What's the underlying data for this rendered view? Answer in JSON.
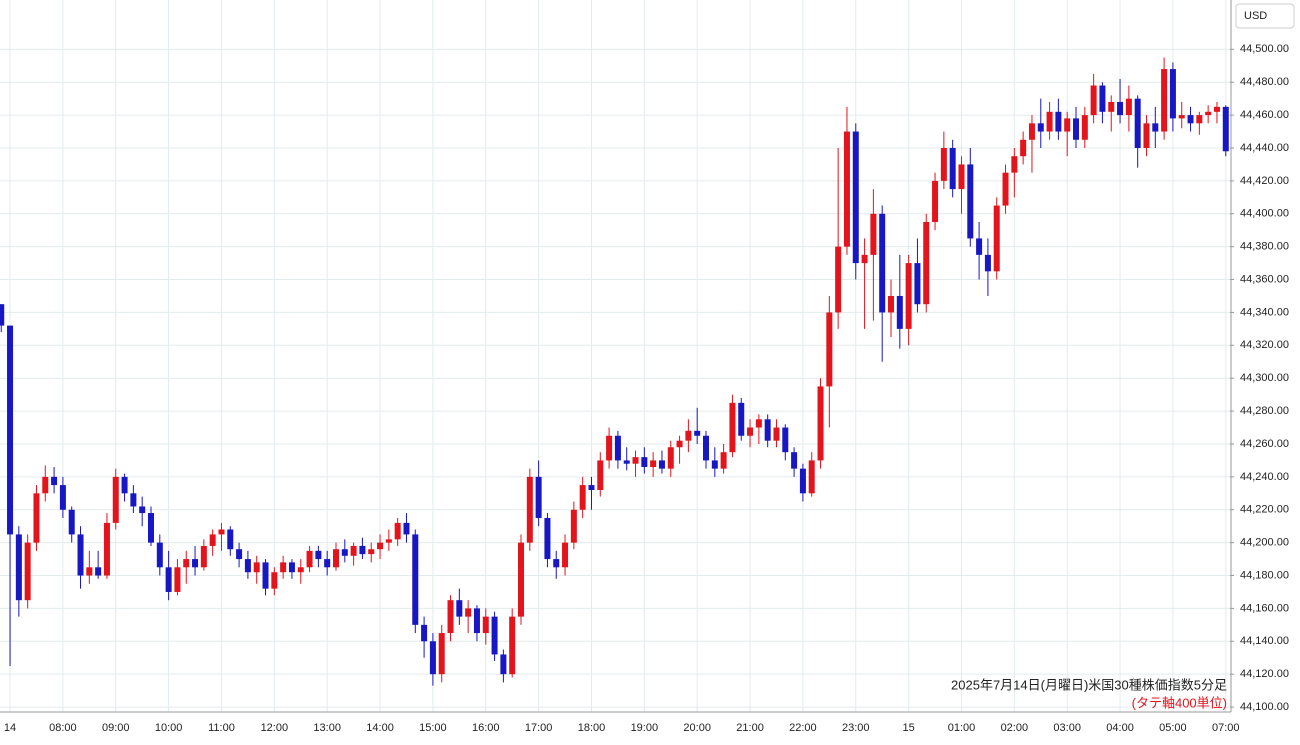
{
  "chart_data": {
    "type": "candlestick",
    "currency": "USD",
    "annotation": "2025年7月14日(月曜日)米国30種株価指数5分足",
    "annotation_sub": "(タテ軸400単位)",
    "up_color": "#e3141c",
    "down_color": "#1717c4",
    "grid": true,
    "ylim": [
      44097,
      44530
    ],
    "xlim": [
      -0.14,
      139.48
    ],
    "yticks": [
      {
        "value": 44100,
        "label": "44,100.00"
      },
      {
        "value": 44120,
        "label": "44,120.00"
      },
      {
        "value": 44140,
        "label": "44,140.00"
      },
      {
        "value": 44160,
        "label": "44,160.00"
      },
      {
        "value": 44180,
        "label": "44,180.00"
      },
      {
        "value": 44200,
        "label": "44,200.00"
      },
      {
        "value": 44220,
        "label": "44,220.00"
      },
      {
        "value": 44240,
        "label": "44,240.00"
      },
      {
        "value": 44260,
        "label": "44,260.00"
      },
      {
        "value": 44280,
        "label": "44,280.00"
      },
      {
        "value": 44300,
        "label": "44,300.00"
      },
      {
        "value": 44320,
        "label": "44,320.00"
      },
      {
        "value": 44340,
        "label": "44,340.00"
      },
      {
        "value": 44360,
        "label": "44,360.00"
      },
      {
        "value": 44380,
        "label": "44,380.00"
      },
      {
        "value": 44400,
        "label": "44,400.00"
      },
      {
        "value": 44420,
        "label": "44,420.00"
      },
      {
        "value": 44440,
        "label": "44,440.00"
      },
      {
        "value": 44460,
        "label": "44,460.00"
      },
      {
        "value": 44480,
        "label": "44,480.00"
      },
      {
        "value": 44500,
        "label": "44,500.00"
      }
    ],
    "xticks": [
      {
        "value": 1,
        "label": "14"
      },
      {
        "value": 7,
        "label": "08:00"
      },
      {
        "value": 13,
        "label": "09:00"
      },
      {
        "value": 19,
        "label": "10:00"
      },
      {
        "value": 25,
        "label": "11:00"
      },
      {
        "value": 31,
        "label": "12:00"
      },
      {
        "value": 37,
        "label": "13:00"
      },
      {
        "value": 43,
        "label": "14:00"
      },
      {
        "value": 49,
        "label": "15:00"
      },
      {
        "value": 55,
        "label": "16:00"
      },
      {
        "value": 61,
        "label": "17:00"
      },
      {
        "value": 67,
        "label": "18:00"
      },
      {
        "value": 73,
        "label": "19:00"
      },
      {
        "value": 79,
        "label": "20:00"
      },
      {
        "value": 85,
        "label": "21:00"
      },
      {
        "value": 91,
        "label": "22:00"
      },
      {
        "value": 97,
        "label": "23:00"
      },
      {
        "value": 103,
        "label": "15"
      },
      {
        "value": 109,
        "label": "01:00"
      },
      {
        "value": 115,
        "label": "02:00"
      },
      {
        "value": 121,
        "label": "03:00"
      },
      {
        "value": 127,
        "label": "04:00"
      },
      {
        "value": 133,
        "label": "05:00"
      },
      {
        "value": 139,
        "label": "07:00"
      }
    ],
    "open": [
      44345,
      44332,
      44205,
      44165,
      44200,
      44230,
      44240,
      44235,
      44220,
      44205,
      44180,
      44185,
      44180,
      44212,
      44240,
      44230,
      44222,
      44218,
      44200,
      44185,
      44170,
      44185,
      44190,
      44185,
      44198,
      44205,
      44208,
      44196,
      44190,
      44182,
      44188,
      44172,
      44182,
      44188,
      44182,
      44185,
      44195,
      44190,
      44185,
      44196,
      44192,
      44198,
      44193,
      44196,
      44200,
      44202,
      44212,
      44205,
      44150,
      44140,
      44120,
      44145,
      44165,
      44155,
      44160,
      44145,
      44155,
      44132,
      44120,
      44155,
      44200,
      44240,
      44215,
      44190,
      44185,
      44200,
      44220,
      44235,
      44232,
      44250,
      44265,
      44250,
      44248,
      44252,
      44246,
      44250,
      44245,
      44258,
      44262,
      44268,
      44265,
      44250,
      44245,
      44255,
      44285,
      44265,
      44270,
      44275,
      44262,
      44270,
      44255,
      44245,
      44230,
      44250,
      44295,
      44340,
      44380,
      44450,
      44370,
      44375,
      44400,
      44340,
      44350,
      44330,
      44370,
      44345,
      44395,
      44420,
      44440,
      44415,
      44430,
      44385,
      44375,
      44365,
      44405,
      44425,
      44435,
      44445,
      44455,
      44450,
      44462,
      44450,
      44458,
      44445,
      44460,
      44478,
      44462,
      44468,
      44460,
      44470,
      44440,
      44455,
      44450,
      44488,
      44458,
      44460,
      44455,
      44460,
      44462,
      44465
    ],
    "high": [
      44345,
      44332,
      44210,
      44205,
      44235,
      44247,
      44246,
      44240,
      44222,
      44210,
      44195,
      44195,
      44218,
      44245,
      44242,
      44235,
      44228,
      44222,
      44205,
      44195,
      44190,
      44195,
      44198,
      44202,
      44208,
      44212,
      44210,
      44200,
      44195,
      44192,
      44190,
      44185,
      44192,
      44190,
      44190,
      44198,
      44198,
      44195,
      44200,
      44202,
      44200,
      44203,
      44200,
      44205,
      44208,
      44215,
      44218,
      44208,
      44155,
      44145,
      44150,
      44168,
      44172,
      44165,
      44162,
      44160,
      44158,
      44135,
      44160,
      44205,
      44245,
      44250,
      44218,
      44195,
      44205,
      44225,
      44240,
      44240,
      44255,
      44270,
      44268,
      44258,
      44256,
      44258,
      44255,
      44256,
      44262,
      44265,
      44275,
      44282,
      44268,
      44258,
      44260,
      44290,
      44288,
      44275,
      44278,
      44278,
      44275,
      44272,
      44258,
      44248,
      44255,
      44300,
      44350,
      44440,
      44465,
      44455,
      44385,
      44415,
      44405,
      44360,
      44375,
      44375,
      44385,
      44400,
      44425,
      44450,
      44445,
      44435,
      44440,
      44395,
      44385,
      44410,
      44430,
      44440,
      44450,
      44460,
      44470,
      44468,
      44470,
      44462,
      44465,
      44465,
      44485,
      44480,
      44472,
      44482,
      44478,
      44472,
      44460,
      44465,
      44495,
      44492,
      44468,
      44465,
      44462,
      44466,
      44468,
      44466
    ],
    "low": [
      44328,
      44125,
      44155,
      44160,
      44195,
      44225,
      44230,
      44215,
      44200,
      44172,
      44175,
      44178,
      44178,
      44208,
      44225,
      44218,
      44210,
      44198,
      44180,
      44165,
      44168,
      44175,
      44180,
      44183,
      44192,
      44195,
      44192,
      44185,
      44178,
      44175,
      44168,
      44168,
      44178,
      44178,
      44175,
      44182,
      44185,
      44180,
      44183,
      44188,
      44186,
      44190,
      44188,
      44190,
      44195,
      44198,
      44200,
      44145,
      44130,
      44113,
      44115,
      44140,
      44150,
      44145,
      44140,
      44138,
      44128,
      44115,
      44118,
      44150,
      44195,
      44210,
      44185,
      44178,
      44180,
      44196,
      44215,
      44220,
      44228,
      44245,
      44245,
      44244,
      44240,
      44242,
      44240,
      44242,
      44240,
      44248,
      44255,
      44260,
      44245,
      44240,
      44242,
      44252,
      44262,
      44258,
      44260,
      44258,
      44258,
      44250,
      44240,
      44225,
      44228,
      44245,
      44270,
      44330,
      44375,
      44360,
      44330,
      44335,
      44310,
      44325,
      44318,
      44320,
      44340,
      44340,
      44390,
      44415,
      44410,
      44400,
      44380,
      44360,
      44350,
      44360,
      44400,
      44410,
      44430,
      44425,
      44440,
      44445,
      44445,
      44435,
      44440,
      44440,
      44455,
      44455,
      44450,
      44455,
      44450,
      44428,
      44435,
      44440,
      44445,
      44450,
      44452,
      44450,
      44448,
      44455,
      44455,
      44435
    ],
    "close": [
      44332,
      44205,
      44165,
      44200,
      44230,
      44240,
      44235,
      44220,
      44205,
      44180,
      44185,
      44180,
      44212,
      44240,
      44230,
      44222,
      44218,
      44200,
      44185,
      44170,
      44185,
      44190,
      44185,
      44198,
      44205,
      44208,
      44196,
      44190,
      44182,
      44188,
      44172,
      44182,
      44188,
      44182,
      44185,
      44195,
      44190,
      44185,
      44196,
      44192,
      44198,
      44193,
      44196,
      44200,
      44202,
      44212,
      44205,
      44150,
      44140,
      44120,
      44145,
      44165,
      44155,
      44160,
      44145,
      44155,
      44132,
      44120,
      44155,
      44200,
      44240,
      44215,
      44190,
      44185,
      44200,
      44220,
      44235,
      44232,
      44250,
      44265,
      44250,
      44248,
      44252,
      44246,
      44250,
      44245,
      44258,
      44262,
      44268,
      44265,
      44250,
      44245,
      44255,
      44285,
      44265,
      44270,
      44275,
      44262,
      44270,
      44255,
      44245,
      44230,
      44250,
      44295,
      44340,
      44380,
      44450,
      44370,
      44375,
      44400,
      44340,
      44350,
      44330,
      44370,
      44345,
      44395,
      44420,
      44440,
      44415,
      44430,
      44385,
      44375,
      44365,
      44405,
      44425,
      44435,
      44445,
      44455,
      44450,
      44462,
      44450,
      44458,
      44445,
      44460,
      44478,
      44462,
      44468,
      44460,
      44470,
      44440,
      44455,
      44450,
      44488,
      44458,
      44460,
      44455,
      44460,
      44462,
      44465,
      44438
    ]
  }
}
